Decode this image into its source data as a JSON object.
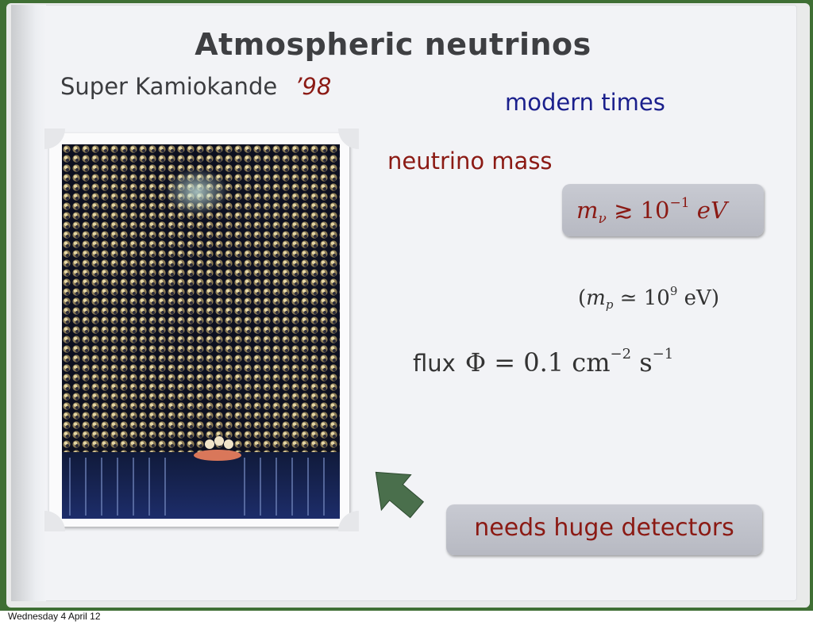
{
  "slide": {
    "title": "Atmospheric neutrinos",
    "subtitle": "Super Kamiokande",
    "year": "’98",
    "modern_times": "modern times",
    "neutrino_mass": "neutrino mass",
    "mass_formula": {
      "m": "m",
      "sub": "ν",
      "rel": "≳",
      "base": "10",
      "exp": "−1",
      "unit": "eV"
    },
    "proton_mass": {
      "open": "(",
      "m": "m",
      "sub": "p",
      "rel": " ≃ ",
      "base": "10",
      "exp": "9",
      "unit": " eV",
      "close": ")"
    },
    "flux": {
      "label": "flux",
      "symbol": "Φ = 0.1 cm",
      "exp1": "−2",
      "unit2": " s",
      "exp2": "−1"
    },
    "callout": "needs huge detectors"
  },
  "footer": {
    "date": "Wednesday 4 April 12"
  },
  "colors": {
    "accent_red": "#8b1a14",
    "accent_blue": "#1a1f8c",
    "book_green": "#3f6f34"
  },
  "icons": {
    "arrow": "pointer-arrow-icon"
  }
}
